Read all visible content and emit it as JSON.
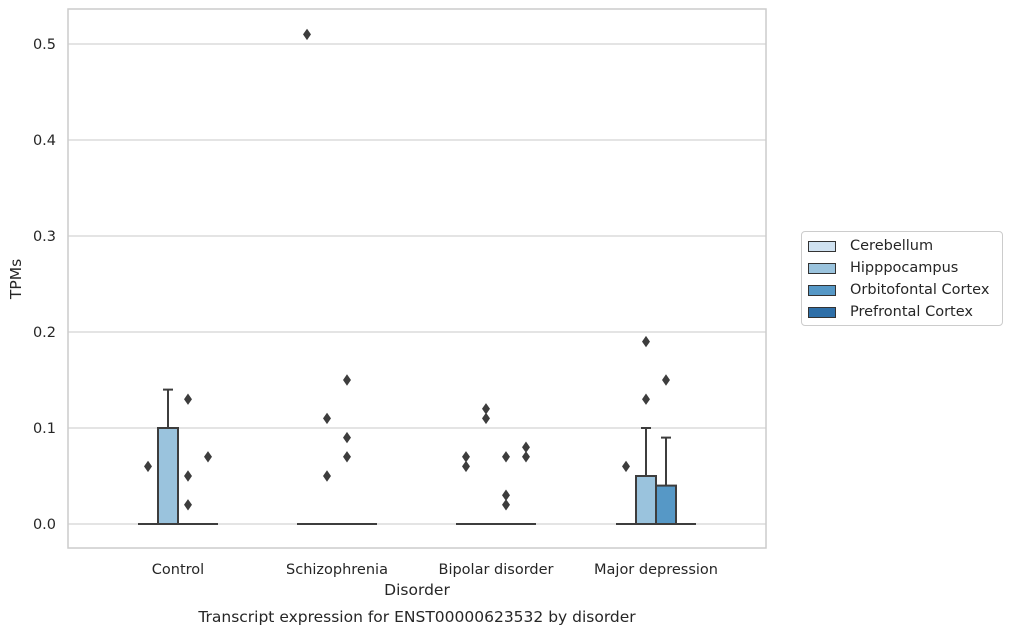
{
  "chart_data": {
    "type": "box",
    "caption": "Transcript expression for ENST00000623532 by disorder",
    "xlabel": "Disorder",
    "ylabel": "TPMs",
    "ylim": [
      -0.025,
      0.537
    ],
    "yticks": [
      "0.0",
      "0.1",
      "0.2",
      "0.3",
      "0.4",
      "0.5"
    ],
    "ytick_values": [
      0,
      0.1,
      0.2,
      0.3,
      0.4,
      0.5
    ],
    "categories": [
      "Control",
      "Schizophrenia",
      "Bipolar disorder",
      "Major depression"
    ],
    "grid": "horizontal",
    "legend_position": "right",
    "series": [
      {
        "name": "Cerebellum",
        "color": "#d0e2f1",
        "boxes": [
          {
            "q1": 0,
            "median": 0,
            "q3": 0,
            "whisker_low": 0,
            "whisker_high": 0,
            "outliers": [
              0.06
            ]
          },
          {
            "q1": 0,
            "median": 0,
            "q3": 0,
            "whisker_low": 0,
            "whisker_high": 0,
            "outliers": [
              0.51
            ]
          },
          {
            "q1": 0,
            "median": 0,
            "q3": 0,
            "whisker_low": 0,
            "whisker_high": 0,
            "outliers": [
              0.07,
              0.06
            ]
          },
          {
            "q1": 0,
            "median": 0,
            "q3": 0,
            "whisker_low": 0,
            "whisker_high": 0,
            "outliers": [
              0.06
            ]
          }
        ]
      },
      {
        "name": "Hipppocampus",
        "color": "#9ac3dd",
        "boxes": [
          {
            "q1": 0,
            "median": 0,
            "q3": 0.1,
            "whisker_low": 0,
            "whisker_high": 0.14,
            "outliers": []
          },
          {
            "q1": 0,
            "median": 0,
            "q3": 0,
            "whisker_low": 0,
            "whisker_high": 0,
            "outliers": [
              0.11,
              0.05
            ]
          },
          {
            "q1": 0,
            "median": 0,
            "q3": 0,
            "whisker_low": 0,
            "whisker_high": 0,
            "outliers": [
              0.12,
              0.11
            ]
          },
          {
            "q1": 0,
            "median": 0,
            "q3": 0.05,
            "whisker_low": 0,
            "whisker_high": 0.1,
            "outliers": [
              0.19,
              0.13
            ]
          }
        ]
      },
      {
        "name": "Orbitofontal Cortex",
        "color": "#5698c6",
        "boxes": [
          {
            "q1": 0,
            "median": 0,
            "q3": 0,
            "whisker_low": 0,
            "whisker_high": 0,
            "outliers": [
              0.13,
              0.05,
              0.02
            ]
          },
          {
            "q1": 0,
            "median": 0,
            "q3": 0,
            "whisker_low": 0,
            "whisker_high": 0,
            "outliers": [
              0.15,
              0.09,
              0.07
            ]
          },
          {
            "q1": 0,
            "median": 0,
            "q3": 0,
            "whisker_low": 0,
            "whisker_high": 0,
            "outliers": [
              0.07,
              0.03,
              0.02
            ]
          },
          {
            "q1": 0,
            "median": 0,
            "q3": 0.04,
            "whisker_low": 0,
            "whisker_high": 0.09,
            "outliers": [
              0.15
            ]
          }
        ]
      },
      {
        "name": "Prefrontal Cortex",
        "color": "#2e6fa8",
        "boxes": [
          {
            "q1": 0,
            "median": 0,
            "q3": 0,
            "whisker_low": 0,
            "whisker_high": 0,
            "outliers": [
              0.07
            ]
          },
          {
            "q1": 0,
            "median": 0,
            "q3": 0,
            "whisker_low": 0,
            "whisker_high": 0,
            "outliers": []
          },
          {
            "q1": 0,
            "median": 0,
            "q3": 0,
            "whisker_low": 0,
            "whisker_high": 0,
            "outliers": [
              0.08,
              0.07
            ]
          },
          {
            "q1": 0,
            "median": 0,
            "q3": 0,
            "whisker_low": 0,
            "whisker_high": 0,
            "outliers": []
          }
        ]
      }
    ]
  }
}
